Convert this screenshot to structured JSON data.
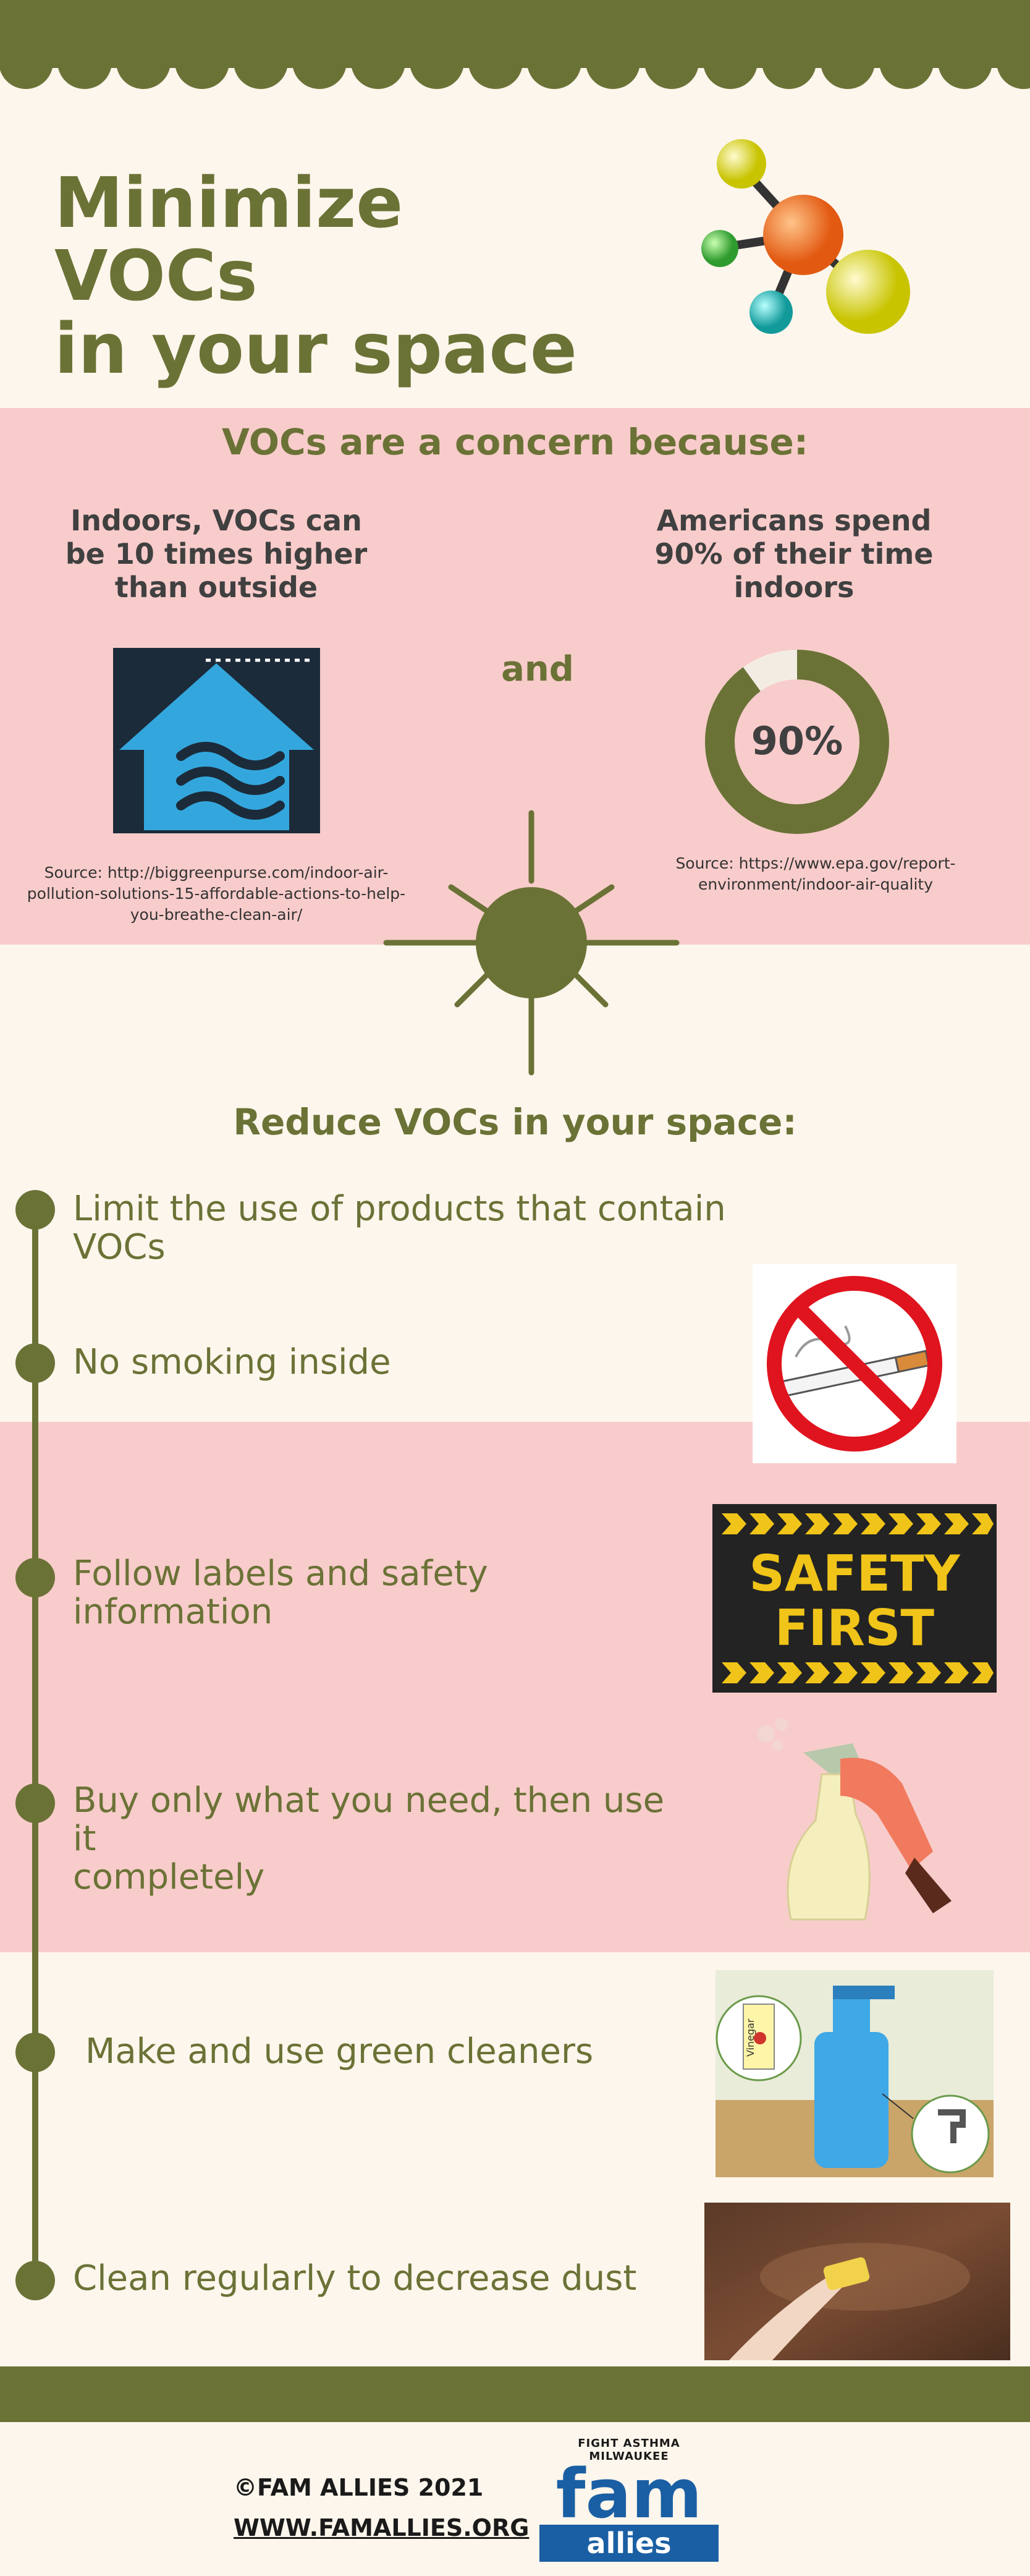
{
  "header": {
    "title_line1": "Minimize VOCs",
    "title_line2": "in your space"
  },
  "concern": {
    "heading": "VOCs are a concern because:",
    "left_stat": [
      "Indoors, VOCs can",
      "be 10 times higher",
      "than outside"
    ],
    "right_stat": [
      "Americans spend",
      "90% of their time",
      "indoors"
    ],
    "connector": "and",
    "percent_label": "90%",
    "percent_value": 90,
    "left_source": [
      "Source: http://biggreenpurse.com/indoor-air-",
      "pollution-solutions-15-affordable-actions-to-help-",
      "you-breathe-clean-air/"
    ],
    "right_source": [
      "Source: https://www.epa.gov/report-",
      "environment/indoor-air-quality"
    ]
  },
  "reduce": {
    "heading": "Reduce VOCs in your space:",
    "steps": [
      "Limit the use of products that contain VOCs",
      "No smoking inside",
      "Follow labels and safety information",
      "Buy only what you need, then use it",
      "completely",
      "Make and use green cleaners",
      "Clean regularly to decrease dust"
    ],
    "safety_sign": [
      "SAFETY",
      "FIRST"
    ],
    "vinegar_label": "Vinegar"
  },
  "footer": {
    "copyright": "©FAM ALLIES 2021",
    "website": "WWW.FAMALLIES.ORG",
    "logo_top": "FIGHT ASTHMA MILWAUKEE",
    "logo_main": "fam",
    "logo_sub": "allies"
  },
  "colors": {
    "olive": "#6b7236",
    "pink": "#f8cccb",
    "cream": "#fdf6ec",
    "ring_light": "#f3ece2"
  }
}
